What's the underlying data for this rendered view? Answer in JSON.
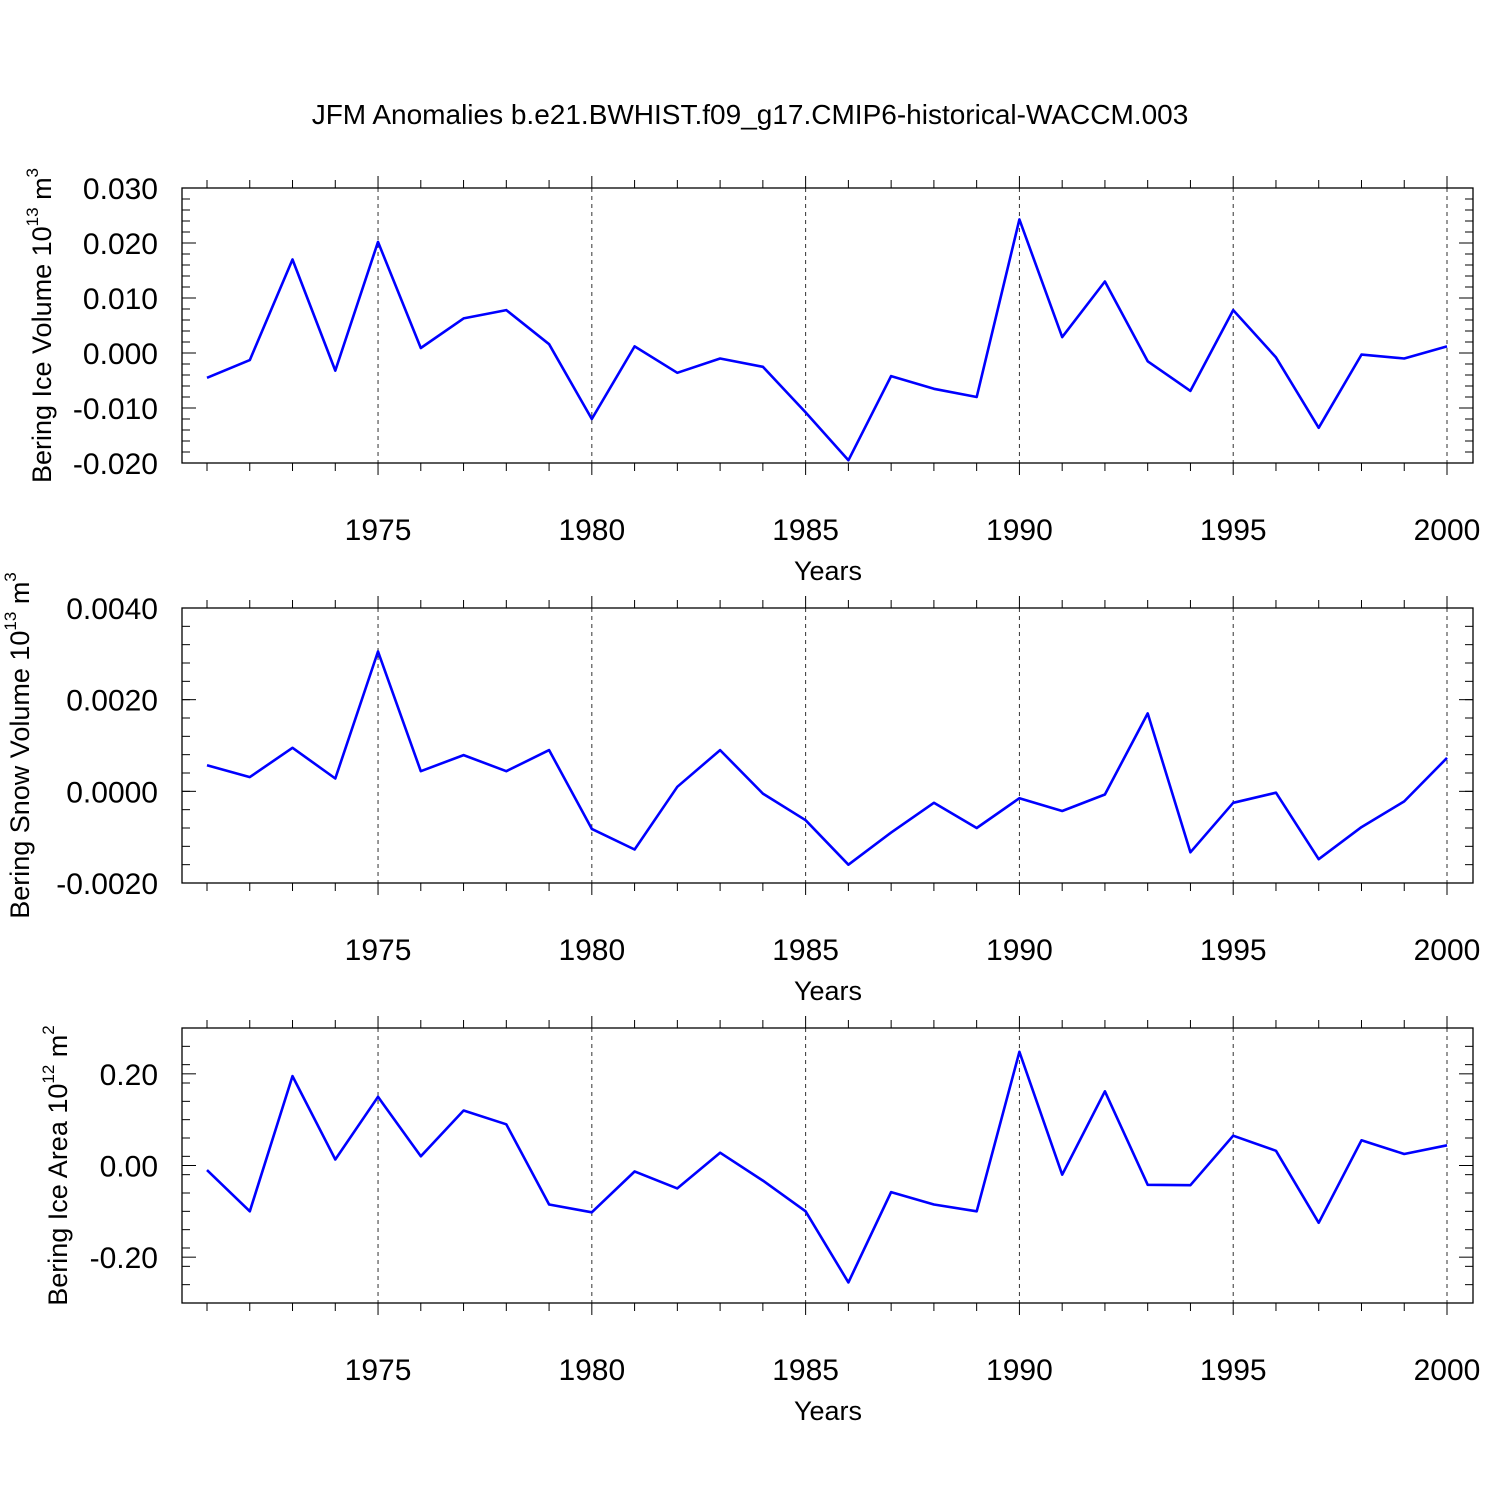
{
  "figure": {
    "title": "JFM Anomalies b.e21.BWHIST.f09_g17.CMIP6-historical-WACCM.003"
  },
  "colors": {
    "series": "#0000ff",
    "axes": "#000000"
  },
  "chart_data": [
    {
      "type": "line",
      "title": "",
      "xlabel": "Years",
      "ylabel": {
        "text": "Bering Ice Volume 10",
        "sup": "13",
        "unit": " m",
        "unit_sup": "3"
      },
      "xlim": [
        1971,
        2000
      ],
      "ylim": [
        -0.02,
        0.03
      ],
      "xticks": [
        1975,
        1980,
        1985,
        1990,
        1995,
        2000
      ],
      "yticks": [
        -0.02,
        -0.01,
        0.0,
        0.01,
        0.02,
        0.03
      ],
      "ytick_labels": [
        "-0.020",
        "-0.010",
        "0.000",
        "0.010",
        "0.020",
        "0.030"
      ],
      "grid": "vertical dashed at major x ticks",
      "x": [
        1971,
        1972,
        1973,
        1974,
        1975,
        1976,
        1977,
        1978,
        1979,
        1980,
        1981,
        1982,
        1983,
        1984,
        1985,
        1986,
        1987,
        1988,
        1989,
        1990,
        1991,
        1992,
        1993,
        1994,
        1995,
        1996,
        1997,
        1998,
        1999,
        2000
      ],
      "series": [
        {
          "values": [
            -0.0045,
            -0.0013,
            0.017,
            -0.0032,
            0.0202,
            0.0009,
            0.0063,
            0.0078,
            0.0016,
            -0.012,
            0.0012,
            -0.0036,
            -0.001,
            -0.0025,
            -0.0108,
            -0.0195,
            -0.0042,
            -0.0065,
            -0.008,
            0.0243,
            0.0029,
            0.013,
            -0.0015,
            -0.0069,
            0.0078,
            -0.0008,
            -0.0136,
            -0.0003,
            -0.001,
            0.0012
          ]
        }
      ]
    },
    {
      "type": "line",
      "title": "",
      "xlabel": "Years",
      "ylabel": {
        "text": "Bering Snow Volume 10",
        "sup": "13",
        "unit": " m",
        "unit_sup": "3"
      },
      "xlim": [
        1971,
        2000
      ],
      "ylim": [
        -0.002,
        0.004
      ],
      "xticks": [
        1975,
        1980,
        1985,
        1990,
        1995,
        2000
      ],
      "yticks": [
        -0.002,
        0.0,
        0.002,
        0.004
      ],
      "ytick_labels": [
        "-0.0020",
        "0.0000",
        "0.0020",
        "0.0040"
      ],
      "grid": "vertical dashed at major x ticks",
      "x": [
        1971,
        1972,
        1973,
        1974,
        1975,
        1976,
        1977,
        1978,
        1979,
        1980,
        1981,
        1982,
        1983,
        1984,
        1985,
        1986,
        1987,
        1988,
        1989,
        1990,
        1991,
        1992,
        1993,
        1994,
        1995,
        1996,
        1997,
        1998,
        1999,
        2000
      ],
      "series": [
        {
          "values": [
            0.00057,
            0.00031,
            0.00095,
            0.00028,
            0.00305,
            0.00044,
            0.00079,
            0.00044,
            0.0009,
            -0.00082,
            -0.00127,
            0.0001,
            0.0009,
            -5e-05,
            -0.00063,
            -0.0016,
            -0.0009,
            -0.00025,
            -0.0008,
            -0.00015,
            -0.00043,
            -7e-05,
            0.0017,
            -0.00133,
            -0.00025,
            -3e-05,
            -0.00148,
            -0.00078,
            -0.00022,
            0.00073
          ]
        }
      ]
    },
    {
      "type": "line",
      "title": "",
      "xlabel": "Years",
      "ylabel": {
        "text": "Bering Ice Area 10",
        "sup": "12",
        "unit": " m",
        "unit_sup": "2"
      },
      "xlim": [
        1971,
        2000
      ],
      "ylim": [
        -0.3,
        0.3
      ],
      "xticks": [
        1975,
        1980,
        1985,
        1990,
        1995,
        2000
      ],
      "yticks": [
        -0.2,
        0.0,
        0.2
      ],
      "ytick_labels": [
        "-0.20",
        "0.00",
        "0.20"
      ],
      "grid": "vertical dashed at major x ticks",
      "x": [
        1971,
        1972,
        1973,
        1974,
        1975,
        1976,
        1977,
        1978,
        1979,
        1980,
        1981,
        1982,
        1983,
        1984,
        1985,
        1986,
        1987,
        1988,
        1989,
        1990,
        1991,
        1992,
        1993,
        1994,
        1995,
        1996,
        1997,
        1998,
        1999,
        2000
      ],
      "series": [
        {
          "values": [
            -0.01,
            -0.1,
            0.195,
            0.013,
            0.15,
            0.02,
            0.12,
            0.09,
            -0.085,
            -0.102,
            -0.013,
            -0.05,
            0.028,
            -0.033,
            -0.1,
            -0.255,
            -0.058,
            -0.085,
            -0.1,
            0.248,
            -0.02,
            0.162,
            -0.042,
            -0.043,
            0.065,
            0.032,
            -0.125,
            0.055,
            0.025,
            0.044
          ]
        }
      ]
    }
  ]
}
